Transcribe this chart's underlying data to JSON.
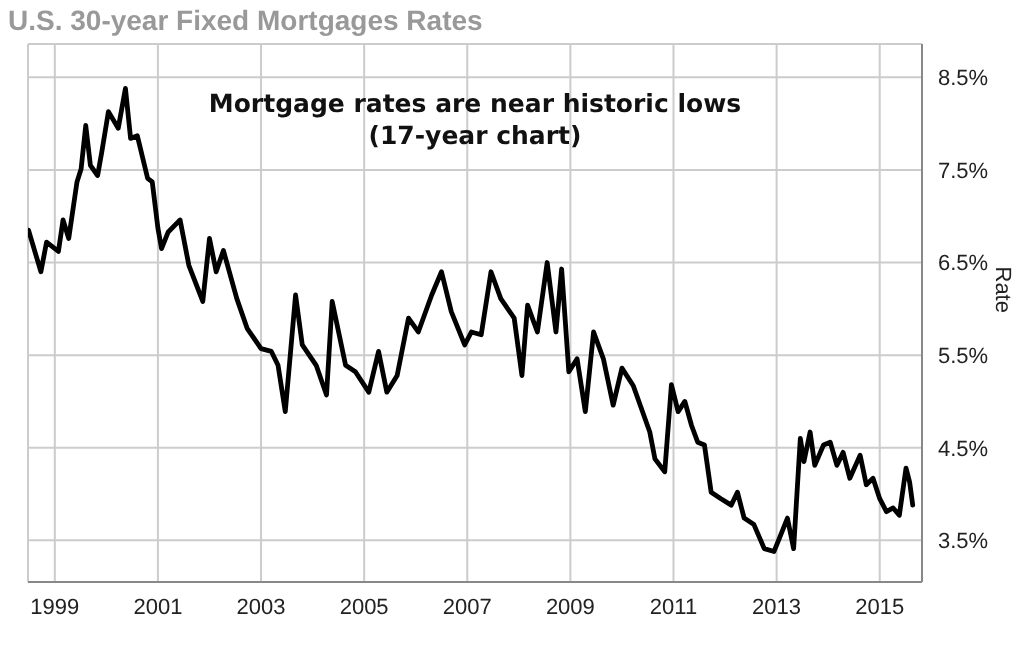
{
  "chart_data": {
    "type": "line",
    "title": "U.S. 30-year Fixed Mortgages Rates",
    "ylabel": "Rate",
    "annotations": [
      "Mortgage rates are near historic lows",
      "(17-year chart)"
    ],
    "xlim": [
      1998.48,
      2015.82
    ],
    "xticks": [
      1999,
      2001,
      2003,
      2005,
      2007,
      2009,
      2011,
      2013,
      2015
    ],
    "ylim": [
      3.05,
      8.86
    ],
    "yticks": [
      {
        "value": 3.5,
        "label": "3.5%"
      },
      {
        "value": 4.5,
        "label": "4.5%"
      },
      {
        "value": 5.5,
        "label": "5.5%"
      },
      {
        "value": 6.5,
        "label": "6.5%"
      },
      {
        "value": 7.5,
        "label": "7.5%"
      },
      {
        "value": 8.5,
        "label": "8.5%"
      }
    ],
    "grid": true,
    "legend": false,
    "line_style": "solid",
    "series": [
      {
        "color": "#000000",
        "x": [
          1998.49,
          1998.73,
          1998.84,
          1999.07,
          1999.16,
          1999.27,
          1999.43,
          1999.51,
          1999.6,
          1999.69,
          1999.83,
          1999.91,
          2000.04,
          2000.23,
          2000.37,
          2000.47,
          2000.6,
          2000.8,
          2000.89,
          2001.0,
          2001.07,
          2001.2,
          2001.43,
          2001.6,
          2001.87,
          2002.0,
          2002.13,
          2002.27,
          2002.53,
          2002.73,
          2003.0,
          2003.2,
          2003.33,
          2003.47,
          2003.67,
          2003.8,
          2004.07,
          2004.27,
          2004.38,
          2004.64,
          2004.83,
          2005.09,
          2005.28,
          2005.44,
          2005.64,
          2005.86,
          2006.05,
          2006.31,
          2006.5,
          2006.69,
          2006.95,
          2007.08,
          2007.27,
          2007.46,
          2007.65,
          2007.91,
          2008.06,
          2008.17,
          2008.36,
          2008.55,
          2008.72,
          2008.83,
          2008.97,
          2009.13,
          2009.29,
          2009.45,
          2009.64,
          2009.83,
          2010.0,
          2010.22,
          2010.54,
          2010.64,
          2010.83,
          2010.96,
          2011.09,
          2011.22,
          2011.35,
          2011.47,
          2011.6,
          2011.73,
          2011.92,
          2012.12,
          2012.24,
          2012.37,
          2012.56,
          2012.76,
          2012.95,
          2013.08,
          2013.21,
          2013.33,
          2013.46,
          2013.53,
          2013.65,
          2013.74,
          2013.91,
          2014.04,
          2014.17,
          2014.29,
          2014.42,
          2014.62,
          2014.74,
          2014.87,
          2015.0,
          2015.13,
          2015.26,
          2015.38,
          2015.51,
          2015.58,
          2015.64
        ],
        "values": [
          6.85,
          6.4,
          6.72,
          6.62,
          6.96,
          6.76,
          7.37,
          7.51,
          7.98,
          7.55,
          7.44,
          7.69,
          8.13,
          7.95,
          8.38,
          7.84,
          7.87,
          7.41,
          7.37,
          6.87,
          6.65,
          6.83,
          6.96,
          6.47,
          6.08,
          6.76,
          6.4,
          6.63,
          6.11,
          5.79,
          5.57,
          5.54,
          5.39,
          4.89,
          6.15,
          5.61,
          5.39,
          5.07,
          6.08,
          5.39,
          5.32,
          5.1,
          5.54,
          5.1,
          5.28,
          5.9,
          5.75,
          6.15,
          6.4,
          5.97,
          5.61,
          5.75,
          5.72,
          6.4,
          6.11,
          5.9,
          5.28,
          6.04,
          5.75,
          6.5,
          5.75,
          6.43,
          5.32,
          5.46,
          4.89,
          5.75,
          5.46,
          4.96,
          5.36,
          5.17,
          4.67,
          4.38,
          4.24,
          5.18,
          4.89,
          5.0,
          4.74,
          4.56,
          4.53,
          4.02,
          3.95,
          3.88,
          4.02,
          3.74,
          3.67,
          3.41,
          3.38,
          3.56,
          3.74,
          3.41,
          4.6,
          4.35,
          4.67,
          4.31,
          4.53,
          4.56,
          4.31,
          4.45,
          4.17,
          4.42,
          4.1,
          4.17,
          3.95,
          3.81,
          3.85,
          3.77,
          4.28,
          4.13,
          3.88
        ]
      }
    ]
  }
}
